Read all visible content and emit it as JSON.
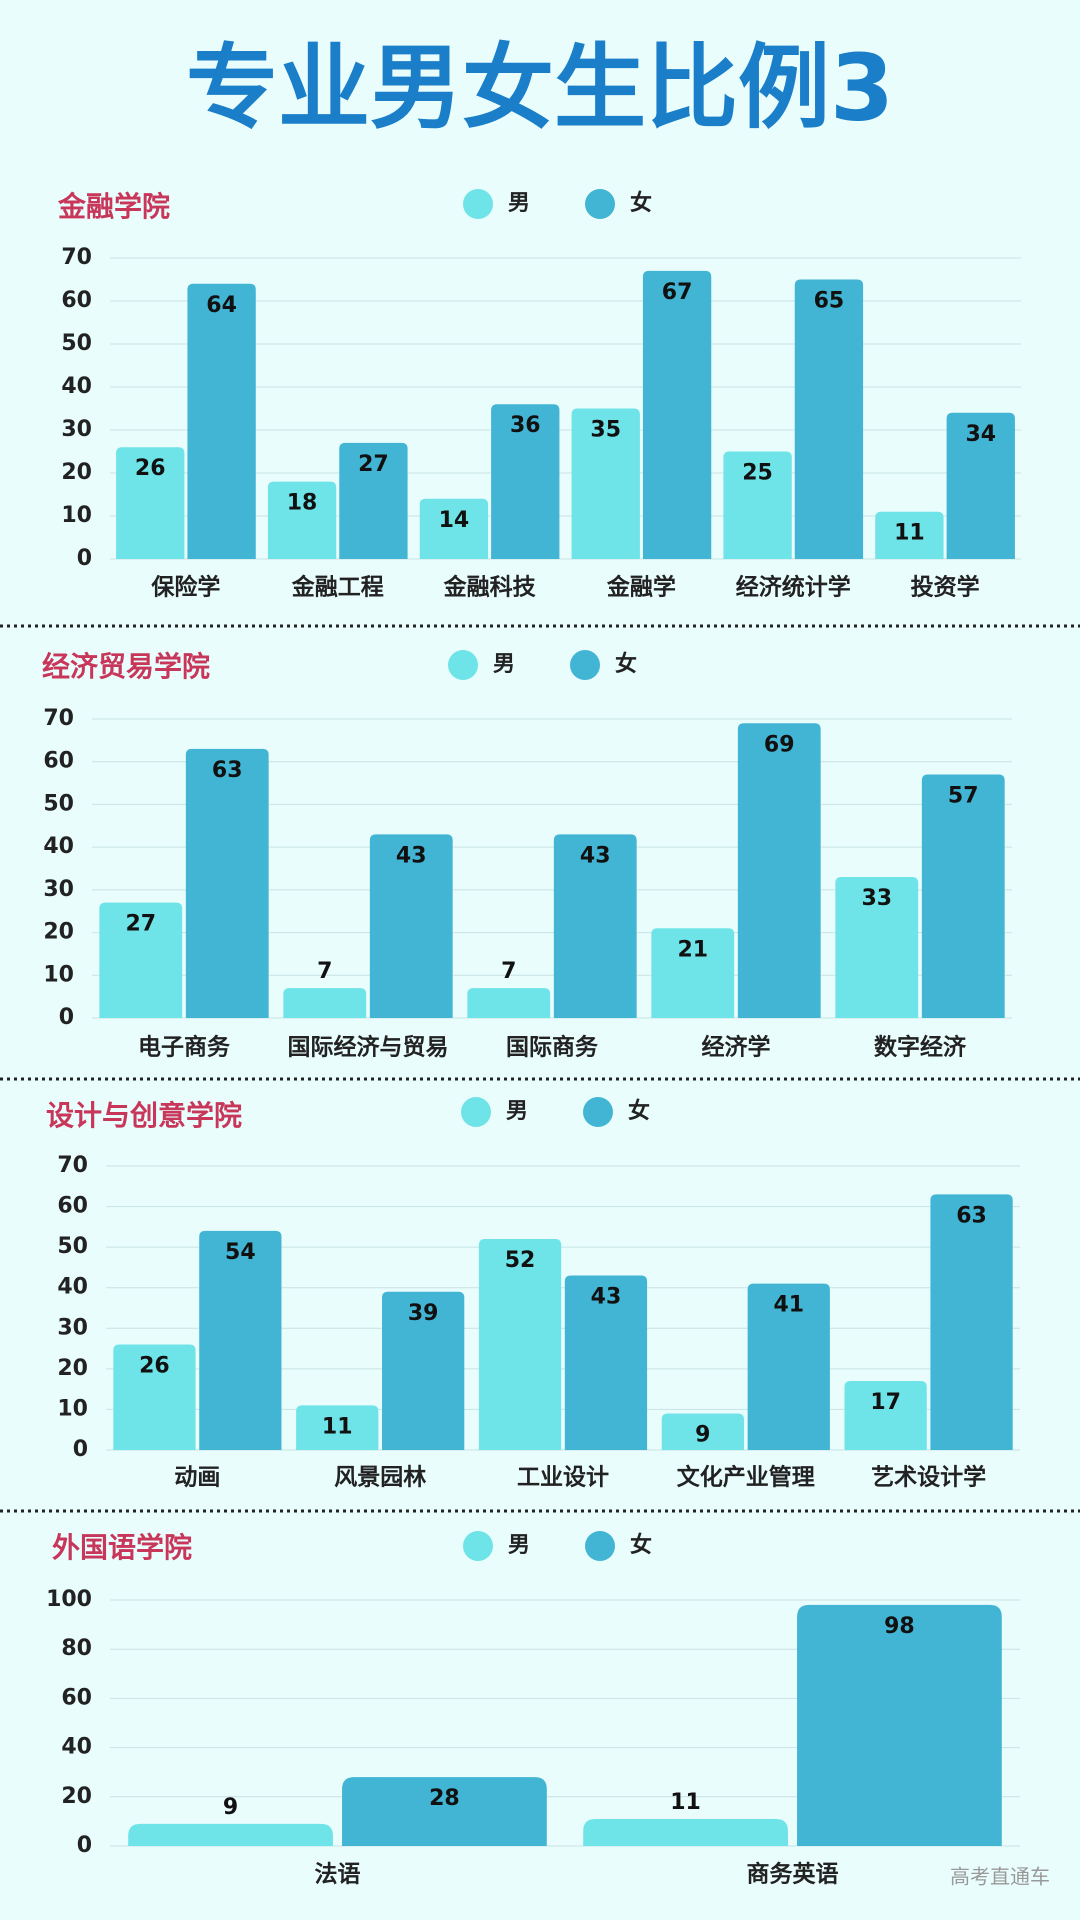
{
  "title": "专业男女生比例3",
  "watermark": "高考直通车",
  "chart_data": [
    {
      "type": "bar",
      "title": "金融学院",
      "categories": [
        "保险学",
        "金融工程",
        "金融科技",
        "金融学",
        "经济统计学",
        "投资学"
      ],
      "series": [
        {
          "name": "男",
          "color": "#6ee3e8",
          "values": [
            26,
            18,
            14,
            35,
            25,
            11
          ]
        },
        {
          "name": "女",
          "color": "#42b4d4",
          "values": [
            64,
            27,
            36,
            67,
            65,
            34
          ]
        }
      ],
      "ylim": [
        0,
        70
      ],
      "yticks": [
        0,
        10,
        20,
        30,
        40,
        50,
        60,
        70
      ],
      "grid": true
    },
    {
      "type": "bar",
      "title": "经济贸易学院",
      "categories": [
        "电子商务",
        "国际经济与贸易",
        "国际商务",
        "经济学",
        "数字经济"
      ],
      "series": [
        {
          "name": "男",
          "color": "#6ee3e8",
          "values": [
            27,
            7,
            7,
            21,
            33
          ]
        },
        {
          "name": "女",
          "color": "#42b4d4",
          "values": [
            63,
            43,
            43,
            69,
            57
          ]
        }
      ],
      "ylim": [
        0,
        70
      ],
      "yticks": [
        0,
        10,
        20,
        30,
        40,
        50,
        60,
        70
      ],
      "grid": true
    },
    {
      "type": "bar",
      "title": "设计与创意学院",
      "categories": [
        "动画",
        "风景园林",
        "工业设计",
        "文化产业管理",
        "艺术设计学"
      ],
      "series": [
        {
          "name": "男",
          "color": "#6ee3e8",
          "values": [
            26,
            11,
            52,
            9,
            17
          ]
        },
        {
          "name": "女",
          "color": "#42b4d4",
          "values": [
            54,
            39,
            43,
            41,
            63
          ]
        }
      ],
      "ylim": [
        0,
        70
      ],
      "yticks": [
        0,
        10,
        20,
        30,
        40,
        50,
        60,
        70
      ],
      "grid": true
    },
    {
      "type": "bar",
      "title": "外国语学院",
      "categories": [
        "法语",
        "商务英语"
      ],
      "series": [
        {
          "name": "男",
          "color": "#6ee3e8",
          "values": [
            9,
            11
          ]
        },
        {
          "name": "女",
          "color": "#42b4d4",
          "values": [
            28,
            98
          ]
        }
      ],
      "ylim": [
        0,
        100
      ],
      "yticks": [
        0,
        20,
        40,
        60,
        80,
        100
      ],
      "grid": true
    }
  ]
}
